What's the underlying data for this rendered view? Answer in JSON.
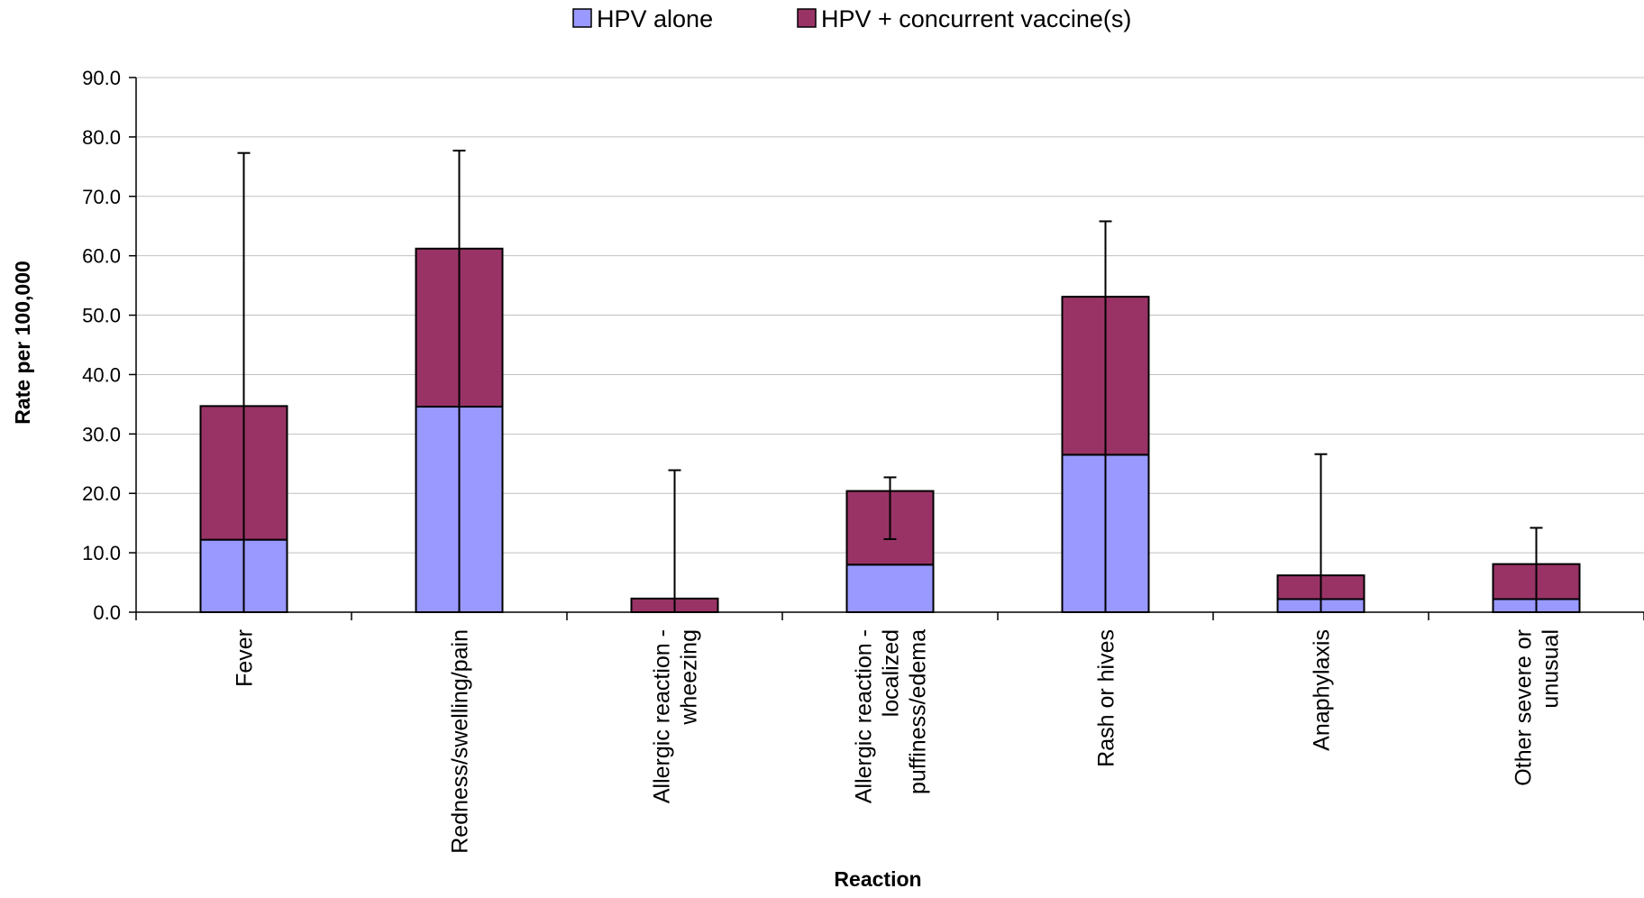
{
  "chart_data": {
    "type": "bar",
    "stacked": true,
    "categories": [
      [
        "Fever"
      ],
      [
        "Redness/swelling/pain"
      ],
      [
        "Allergic reaction -",
        "wheezing"
      ],
      [
        "Allergic reaction -",
        "localized",
        "puffiness/edema"
      ],
      [
        "Rash or hives"
      ],
      [
        "Anaphylaxis"
      ],
      [
        "Other severe or",
        "unusual"
      ]
    ],
    "series": [
      {
        "name": "HPV alone",
        "color": "#9999ff",
        "values": [
          12.2,
          34.6,
          0.0,
          8.0,
          26.5,
          2.2,
          2.2
        ]
      },
      {
        "name": "HPV + concurrent vaccine(s)",
        "color": "#993366",
        "values": [
          22.5,
          26.6,
          2.3,
          12.4,
          26.6,
          4.0,
          5.9
        ]
      }
    ],
    "error_bars": [
      {
        "low": 0.0,
        "high": 77.3
      },
      {
        "low": 0.0,
        "high": 77.7
      },
      {
        "low": 0.0,
        "high": 23.9
      },
      {
        "low": 12.3,
        "high": 22.7
      },
      {
        "low": 0.0,
        "high": 65.8
      },
      {
        "low": 0.0,
        "high": 26.6
      },
      {
        "low": 0.0,
        "high": 14.2
      }
    ],
    "xlabel": "Reaction",
    "ylabel": "Rate per 100,000",
    "ylim": [
      0,
      90
    ],
    "yticks": [
      "0.0",
      "10.0",
      "20.0",
      "30.0",
      "40.0",
      "50.0",
      "60.0",
      "70.0",
      "80.0",
      "90.0"
    ],
    "grid": true,
    "legend_position": "top-center"
  }
}
